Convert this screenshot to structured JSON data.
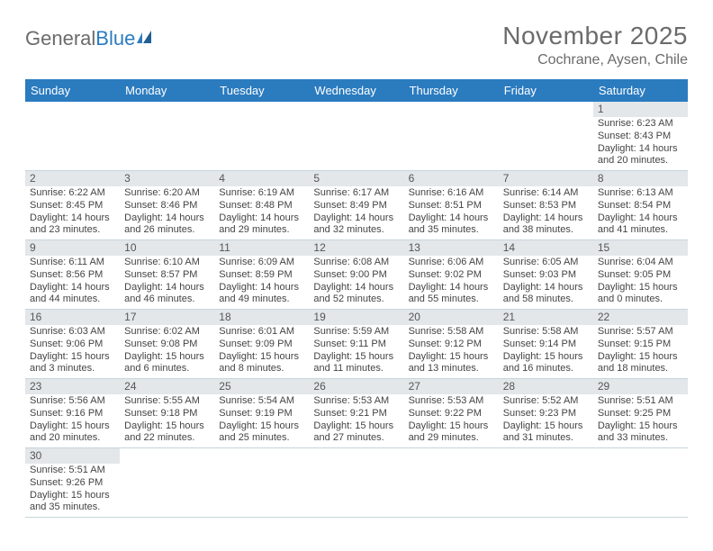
{
  "logo": {
    "text1": "General",
    "text2": "Blue"
  },
  "title": "November 2025",
  "location": "Cochrane, Aysen, Chile",
  "day_names": [
    "Sunday",
    "Monday",
    "Tuesday",
    "Wednesday",
    "Thursday",
    "Friday",
    "Saturday"
  ],
  "colors": {
    "header_bg": "#2b7bbf",
    "header_text": "#ffffff",
    "daynum_bg": "#e3e7ea",
    "row_divider": "#2b7bbf",
    "text": "#444444",
    "title_text": "#6b6b6b"
  },
  "weeks": [
    [
      {
        "empty": true
      },
      {
        "empty": true
      },
      {
        "empty": true
      },
      {
        "empty": true
      },
      {
        "empty": true
      },
      {
        "empty": true
      },
      {
        "n": "1",
        "sunrise": "Sunrise: 6:23 AM",
        "sunset": "Sunset: 8:43 PM",
        "day1": "Daylight: 14 hours",
        "day2": "and 20 minutes."
      }
    ],
    [
      {
        "n": "2",
        "sunrise": "Sunrise: 6:22 AM",
        "sunset": "Sunset: 8:45 PM",
        "day1": "Daylight: 14 hours",
        "day2": "and 23 minutes."
      },
      {
        "n": "3",
        "sunrise": "Sunrise: 6:20 AM",
        "sunset": "Sunset: 8:46 PM",
        "day1": "Daylight: 14 hours",
        "day2": "and 26 minutes."
      },
      {
        "n": "4",
        "sunrise": "Sunrise: 6:19 AM",
        "sunset": "Sunset: 8:48 PM",
        "day1": "Daylight: 14 hours",
        "day2": "and 29 minutes."
      },
      {
        "n": "5",
        "sunrise": "Sunrise: 6:17 AM",
        "sunset": "Sunset: 8:49 PM",
        "day1": "Daylight: 14 hours",
        "day2": "and 32 minutes."
      },
      {
        "n": "6",
        "sunrise": "Sunrise: 6:16 AM",
        "sunset": "Sunset: 8:51 PM",
        "day1": "Daylight: 14 hours",
        "day2": "and 35 minutes."
      },
      {
        "n": "7",
        "sunrise": "Sunrise: 6:14 AM",
        "sunset": "Sunset: 8:53 PM",
        "day1": "Daylight: 14 hours",
        "day2": "and 38 minutes."
      },
      {
        "n": "8",
        "sunrise": "Sunrise: 6:13 AM",
        "sunset": "Sunset: 8:54 PM",
        "day1": "Daylight: 14 hours",
        "day2": "and 41 minutes."
      }
    ],
    [
      {
        "n": "9",
        "sunrise": "Sunrise: 6:11 AM",
        "sunset": "Sunset: 8:56 PM",
        "day1": "Daylight: 14 hours",
        "day2": "and 44 minutes."
      },
      {
        "n": "10",
        "sunrise": "Sunrise: 6:10 AM",
        "sunset": "Sunset: 8:57 PM",
        "day1": "Daylight: 14 hours",
        "day2": "and 46 minutes."
      },
      {
        "n": "11",
        "sunrise": "Sunrise: 6:09 AM",
        "sunset": "Sunset: 8:59 PM",
        "day1": "Daylight: 14 hours",
        "day2": "and 49 minutes."
      },
      {
        "n": "12",
        "sunrise": "Sunrise: 6:08 AM",
        "sunset": "Sunset: 9:00 PM",
        "day1": "Daylight: 14 hours",
        "day2": "and 52 minutes."
      },
      {
        "n": "13",
        "sunrise": "Sunrise: 6:06 AM",
        "sunset": "Sunset: 9:02 PM",
        "day1": "Daylight: 14 hours",
        "day2": "and 55 minutes."
      },
      {
        "n": "14",
        "sunrise": "Sunrise: 6:05 AM",
        "sunset": "Sunset: 9:03 PM",
        "day1": "Daylight: 14 hours",
        "day2": "and 58 minutes."
      },
      {
        "n": "15",
        "sunrise": "Sunrise: 6:04 AM",
        "sunset": "Sunset: 9:05 PM",
        "day1": "Daylight: 15 hours",
        "day2": "and 0 minutes."
      }
    ],
    [
      {
        "n": "16",
        "sunrise": "Sunrise: 6:03 AM",
        "sunset": "Sunset: 9:06 PM",
        "day1": "Daylight: 15 hours",
        "day2": "and 3 minutes."
      },
      {
        "n": "17",
        "sunrise": "Sunrise: 6:02 AM",
        "sunset": "Sunset: 9:08 PM",
        "day1": "Daylight: 15 hours",
        "day2": "and 6 minutes."
      },
      {
        "n": "18",
        "sunrise": "Sunrise: 6:01 AM",
        "sunset": "Sunset: 9:09 PM",
        "day1": "Daylight: 15 hours",
        "day2": "and 8 minutes."
      },
      {
        "n": "19",
        "sunrise": "Sunrise: 5:59 AM",
        "sunset": "Sunset: 9:11 PM",
        "day1": "Daylight: 15 hours",
        "day2": "and 11 minutes."
      },
      {
        "n": "20",
        "sunrise": "Sunrise: 5:58 AM",
        "sunset": "Sunset: 9:12 PM",
        "day1": "Daylight: 15 hours",
        "day2": "and 13 minutes."
      },
      {
        "n": "21",
        "sunrise": "Sunrise: 5:58 AM",
        "sunset": "Sunset: 9:14 PM",
        "day1": "Daylight: 15 hours",
        "day2": "and 16 minutes."
      },
      {
        "n": "22",
        "sunrise": "Sunrise: 5:57 AM",
        "sunset": "Sunset: 9:15 PM",
        "day1": "Daylight: 15 hours",
        "day2": "and 18 minutes."
      }
    ],
    [
      {
        "n": "23",
        "sunrise": "Sunrise: 5:56 AM",
        "sunset": "Sunset: 9:16 PM",
        "day1": "Daylight: 15 hours",
        "day2": "and 20 minutes."
      },
      {
        "n": "24",
        "sunrise": "Sunrise: 5:55 AM",
        "sunset": "Sunset: 9:18 PM",
        "day1": "Daylight: 15 hours",
        "day2": "and 22 minutes."
      },
      {
        "n": "25",
        "sunrise": "Sunrise: 5:54 AM",
        "sunset": "Sunset: 9:19 PM",
        "day1": "Daylight: 15 hours",
        "day2": "and 25 minutes."
      },
      {
        "n": "26",
        "sunrise": "Sunrise: 5:53 AM",
        "sunset": "Sunset: 9:21 PM",
        "day1": "Daylight: 15 hours",
        "day2": "and 27 minutes."
      },
      {
        "n": "27",
        "sunrise": "Sunrise: 5:53 AM",
        "sunset": "Sunset: 9:22 PM",
        "day1": "Daylight: 15 hours",
        "day2": "and 29 minutes."
      },
      {
        "n": "28",
        "sunrise": "Sunrise: 5:52 AM",
        "sunset": "Sunset: 9:23 PM",
        "day1": "Daylight: 15 hours",
        "day2": "and 31 minutes."
      },
      {
        "n": "29",
        "sunrise": "Sunrise: 5:51 AM",
        "sunset": "Sunset: 9:25 PM",
        "day1": "Daylight: 15 hours",
        "day2": "and 33 minutes."
      }
    ],
    [
      {
        "n": "30",
        "sunrise": "Sunrise: 5:51 AM",
        "sunset": "Sunset: 9:26 PM",
        "day1": "Daylight: 15 hours",
        "day2": "and 35 minutes."
      },
      {
        "empty": true
      },
      {
        "empty": true
      },
      {
        "empty": true
      },
      {
        "empty": true
      },
      {
        "empty": true
      },
      {
        "empty": true
      }
    ]
  ]
}
